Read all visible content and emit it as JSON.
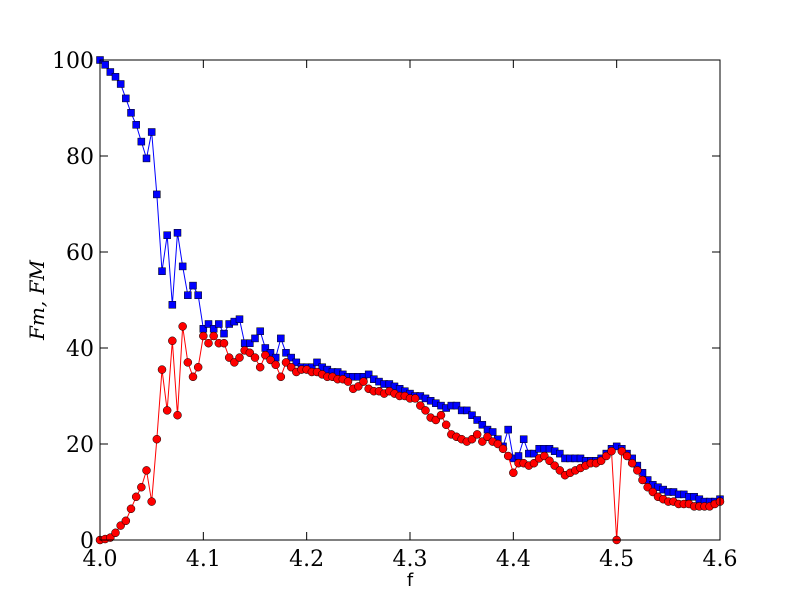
{
  "chart_data": {
    "type": "line",
    "xlabel": "f",
    "ylabel": "Fm, FM",
    "x": [
      4.0,
      4.005,
      4.01,
      4.015,
      4.02,
      4.025,
      4.03,
      4.035,
      4.04,
      4.045,
      4.05,
      4.055,
      4.06,
      4.065,
      4.07,
      4.075,
      4.08,
      4.085,
      4.09,
      4.095,
      4.1,
      4.105,
      4.11,
      4.115,
      4.12,
      4.125,
      4.13,
      4.135,
      4.14,
      4.145,
      4.15,
      4.155,
      4.16,
      4.165,
      4.17,
      4.175,
      4.18,
      4.185,
      4.19,
      4.195,
      4.2,
      4.205,
      4.21,
      4.215,
      4.22,
      4.225,
      4.23,
      4.235,
      4.24,
      4.245,
      4.25,
      4.255,
      4.26,
      4.265,
      4.27,
      4.275,
      4.28,
      4.285,
      4.29,
      4.295,
      4.3,
      4.305,
      4.31,
      4.315,
      4.32,
      4.325,
      4.33,
      4.335,
      4.34,
      4.345,
      4.35,
      4.355,
      4.36,
      4.365,
      4.37,
      4.375,
      4.38,
      4.385,
      4.39,
      4.395,
      4.4,
      4.405,
      4.41,
      4.415,
      4.42,
      4.425,
      4.43,
      4.435,
      4.44,
      4.445,
      4.45,
      4.455,
      4.46,
      4.465,
      4.47,
      4.475,
      4.48,
      4.485,
      4.49,
      4.495,
      4.5,
      4.505,
      4.51,
      4.515,
      4.52,
      4.525,
      4.53,
      4.535,
      4.54,
      4.545,
      4.55,
      4.555,
      4.56,
      4.565,
      4.57,
      4.575,
      4.58,
      4.585,
      4.59,
      4.595,
      4.6
    ],
    "series": [
      {
        "color": "#0000ff",
        "marker": "square",
        "values": [
          100,
          99,
          97.5,
          96.5,
          95,
          92,
          89,
          86.5,
          83,
          79.5,
          85,
          72,
          56,
          63.5,
          49,
          64,
          57,
          51,
          53,
          51,
          44,
          45,
          44,
          45,
          43,
          45,
          45.5,
          46,
          41,
          41,
          42,
          43.5,
          40,
          39,
          38,
          42,
          39,
          38,
          37,
          36,
          36,
          36,
          37,
          36,
          35.5,
          35,
          35,
          34.5,
          34,
          34,
          34,
          34,
          34.5,
          33.5,
          33,
          32.5,
          32.5,
          32,
          31.5,
          31,
          30.5,
          30,
          30,
          29.5,
          29,
          28.5,
          28,
          27.5,
          28,
          28,
          27,
          27,
          26,
          25,
          24,
          23,
          22.5,
          21,
          19.5,
          23,
          17,
          17.5,
          21,
          18,
          18,
          19,
          19,
          19,
          18.5,
          18,
          17,
          17,
          17,
          17,
          16.5,
          16.5,
          16.5,
          17,
          18,
          19,
          19.5,
          19,
          18,
          17,
          15.5,
          14,
          12.5,
          11.5,
          11,
          10.5,
          10,
          10,
          9.5,
          9.5,
          9,
          9,
          8.5,
          8,
          8,
          8,
          8.5
        ]
      },
      {
        "color": "#ff0000",
        "marker": "circle",
        "values": [
          0,
          0.2,
          0.5,
          1.5,
          3,
          4,
          6.5,
          9,
          11,
          14.5,
          8,
          21,
          35.5,
          27,
          41.5,
          26,
          44.5,
          37,
          34,
          36,
          42.5,
          41,
          42.5,
          41,
          41,
          38,
          37,
          38,
          39.5,
          39,
          38,
          36,
          38.5,
          37.5,
          36.5,
          34,
          37,
          36,
          35,
          35.5,
          35.5,
          35,
          35,
          34.5,
          34,
          34,
          33.5,
          33.5,
          33,
          31.5,
          32,
          33,
          31.5,
          31,
          31,
          30.5,
          31,
          30.5,
          30,
          30,
          29.5,
          29.5,
          28,
          27,
          25.5,
          25,
          26,
          24,
          22,
          21.5,
          21,
          20.5,
          21,
          22,
          20.5,
          21.5,
          20.5,
          20,
          19,
          17.5,
          14,
          16,
          16,
          15.5,
          16,
          17,
          17.5,
          16.5,
          15.5,
          14.5,
          13.5,
          14,
          14.5,
          15,
          15.5,
          16,
          16,
          16.5,
          17.5,
          18.5,
          0,
          18.5,
          17.5,
          16,
          14.5,
          12.5,
          11,
          10,
          9,
          8.5,
          8,
          8,
          7.5,
          7.5,
          7.5,
          7,
          7,
          7,
          7,
          7.5,
          8
        ]
      }
    ],
    "xlim": [
      4.0,
      4.6
    ],
    "xticks": [
      {
        "value": 4.0,
        "label": "4.0"
      },
      4.1,
      4.2,
      4.3,
      4.4,
      4.5,
      4.6
    ],
    "ylim": [
      0,
      100
    ],
    "yticks": [
      0,
      20,
      40,
      60,
      80,
      100
    ],
    "grid": false
  }
}
